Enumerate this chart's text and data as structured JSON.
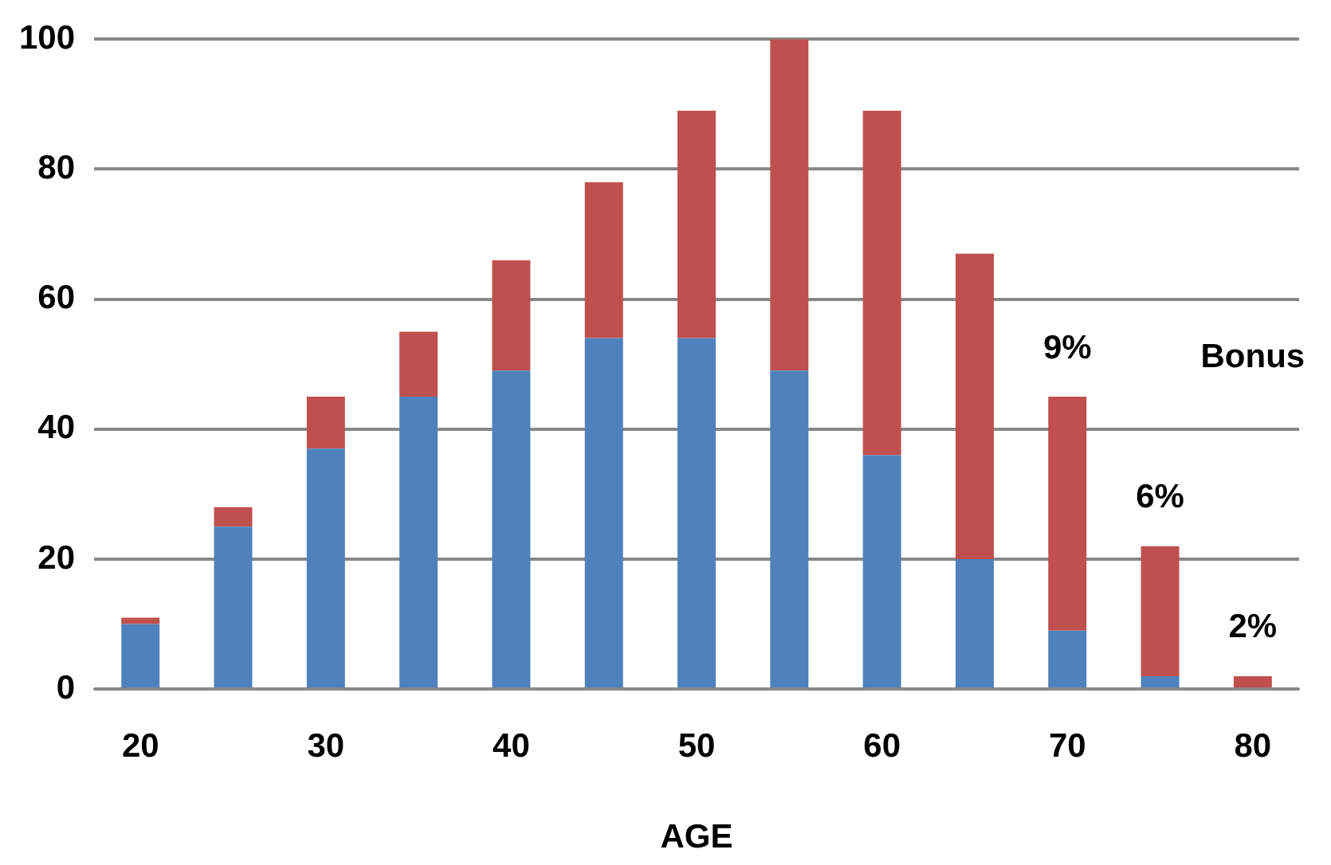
{
  "chart_data": {
    "type": "bar",
    "stacked": true,
    "xlabel": "AGE",
    "categories": [
      "20",
      null,
      "30",
      null,
      "40",
      null,
      "50",
      null,
      "60",
      null,
      "70",
      null,
      "80"
    ],
    "series": [
      {
        "color": "#4f81bd",
        "values": [
          10,
          25,
          37,
          45,
          49,
          54,
          54,
          49,
          36,
          20,
          9,
          2,
          0
        ]
      },
      {
        "color": "#c0504d",
        "values": [
          1,
          3,
          8,
          10,
          17,
          24,
          35,
          51,
          53,
          47,
          36,
          20,
          2
        ]
      }
    ],
    "ylim": [
      0,
      100
    ],
    "yticks": [
      0,
      20,
      40,
      60,
      80,
      100
    ],
    "grid": "y",
    "legend": false,
    "annotations": [
      "9%",
      "6%",
      "2%",
      "Bonus"
    ]
  }
}
